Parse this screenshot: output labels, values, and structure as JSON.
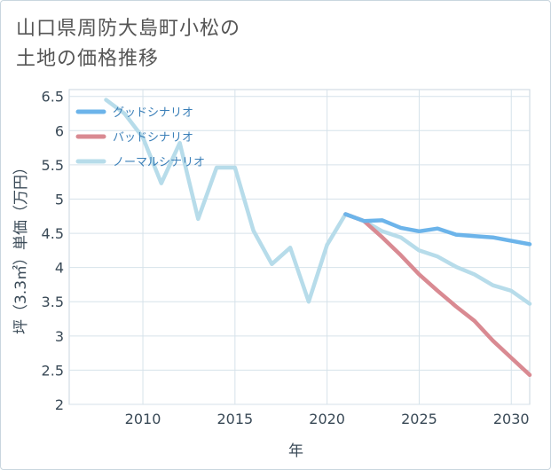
{
  "title": "山口県周防大島町小松の\n土地の価格推移",
  "chart_data": {
    "type": "line",
    "xlabel": "年",
    "ylabel": "坪（3.3㎡）単価（万円）",
    "xlim": [
      2006,
      2031
    ],
    "ylim": [
      2,
      6.6
    ],
    "x_ticks": [
      2010,
      2015,
      2020,
      2025,
      2030
    ],
    "y_ticks": [
      2,
      2.5,
      3,
      3.5,
      4,
      4.5,
      5,
      5.5,
      6,
      6.5
    ],
    "x_tick_labels": [
      "2010",
      "2015",
      "2020",
      "2025",
      "2030"
    ],
    "y_tick_labels": [
      "2",
      "2.5",
      "3",
      "3.5",
      "4",
      "4.5",
      "5",
      "5.5",
      "6",
      "6.5"
    ],
    "legend_position": "top-left",
    "series": [
      {
        "name": "グッドシナリオ",
        "color": "#6cb4ea",
        "x": [
          2021,
          2022,
          2023,
          2024,
          2025,
          2026,
          2027,
          2028,
          2029,
          2030,
          2031
        ],
        "values": [
          4.78,
          4.68,
          4.69,
          4.58,
          4.53,
          4.57,
          4.48,
          4.46,
          4.44,
          4.39,
          4.34
        ]
      },
      {
        "name": "バッドシナリオ",
        "color": "#d98a92",
        "x": [
          2021,
          2022,
          2023,
          2024,
          2025,
          2026,
          2027,
          2028,
          2029,
          2030,
          2031
        ],
        "values": [
          4.78,
          4.68,
          4.44,
          4.18,
          3.9,
          3.66,
          3.43,
          3.22,
          2.93,
          2.68,
          2.43
        ]
      },
      {
        "name": "ノーマルシナリオ",
        "color": "#b7dcea",
        "x": [
          2008,
          2009,
          2010,
          2011,
          2012,
          2013,
          2014,
          2015,
          2016,
          2017,
          2018,
          2019,
          2020,
          2021,
          2022,
          2023,
          2024,
          2025,
          2026,
          2027,
          2028,
          2029,
          2030,
          2031
        ],
        "values": [
          6.45,
          6.25,
          5.9,
          5.23,
          5.82,
          4.71,
          5.46,
          5.46,
          4.54,
          4.05,
          4.29,
          3.5,
          4.33,
          4.78,
          4.68,
          4.53,
          4.44,
          4.25,
          4.16,
          4.01,
          3.9,
          3.74,
          3.66,
          3.47
        ]
      }
    ]
  }
}
